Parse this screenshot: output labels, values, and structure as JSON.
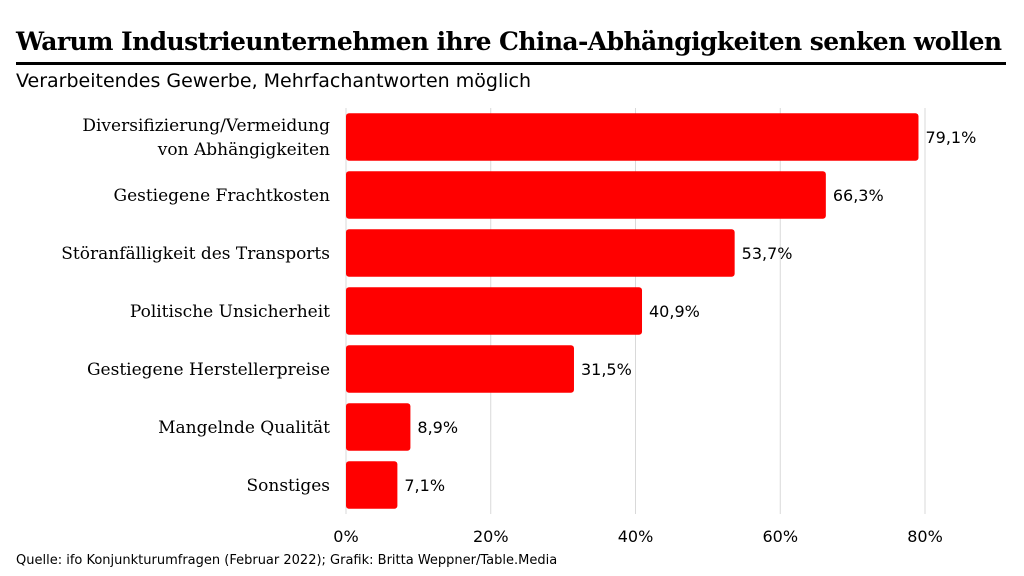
{
  "header": {
    "title": "Warum Industrieunternehmen ihre China-Abhängigkeiten senken wollen",
    "subtitle": "Verarbeitendes Gewerbe, Mehrfachantworten möglich"
  },
  "footer": {
    "source": "Quelle: ifo Konjunkturumfragen (Februar 2022); Grafik: Britta Weppner/Table.Media"
  },
  "colors": {
    "bar": "#ff0000",
    "grid": "#d9d9d9"
  },
  "chart_data": {
    "type": "bar",
    "orientation": "horizontal",
    "title": "Warum Industrieunternehmen ihre China-Abhängigkeiten senken wollen",
    "subtitle": "Verarbeitendes Gewerbe, Mehrfachantworten möglich",
    "categories": [
      [
        "Diversifizierung/Vermeidung",
        "von Abhängigkeiten"
      ],
      [
        "Gestiegene Frachtkosten"
      ],
      [
        "Störanfälligkeit des Transports"
      ],
      [
        "Politische Unsicherheit"
      ],
      [
        "Gestiegene Herstellerpreise"
      ],
      [
        "Mangelnde Qualität"
      ],
      [
        "Sonstiges"
      ]
    ],
    "values": [
      79.1,
      66.3,
      53.7,
      40.9,
      31.5,
      8.9,
      7.1
    ],
    "value_labels": [
      "79,1%",
      "66,3%",
      "53,7%",
      "40,9%",
      "31,5%",
      "8,9%",
      "7,1%"
    ],
    "xlim": [
      0,
      80
    ],
    "xticks": [
      0,
      20,
      40,
      60,
      80
    ],
    "xtick_labels": [
      "0%",
      "20%",
      "40%",
      "60%",
      "80%"
    ],
    "xlabel": "",
    "ylabel": "",
    "grid": "vertical"
  }
}
